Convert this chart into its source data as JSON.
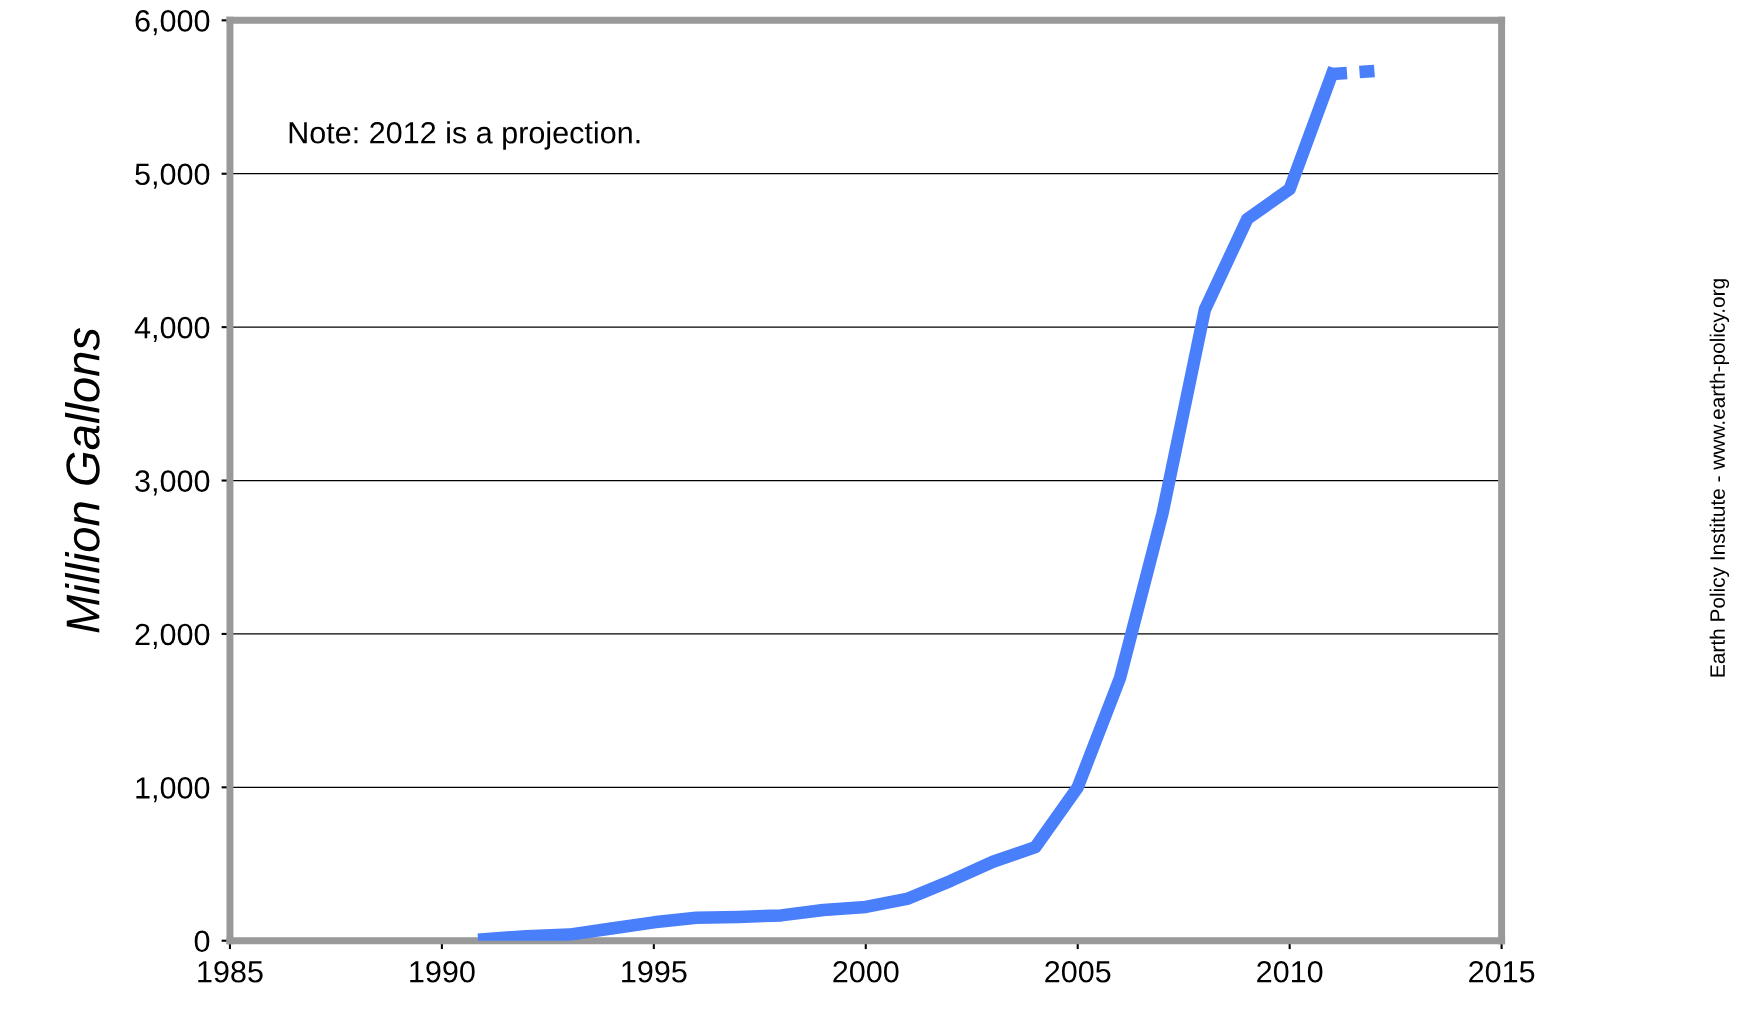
{
  "chart_data": {
    "type": "line",
    "ylabel": "Million Gallons",
    "annotations": [
      "Note: 2012 is a projection.",
      "Earth Policy Institute - www.earth-policy.org"
    ],
    "series": [
      {
        "color": "#4a7ffb",
        "x": [
          1991,
          1992,
          1993,
          1994,
          1995,
          1996,
          1997,
          1998,
          1999,
          2000,
          2001,
          2002,
          2003,
          2004,
          2005,
          2006,
          2007,
          2008,
          2009,
          2010,
          2011
        ],
        "values": [
          10,
          30,
          40,
          80,
          120,
          150,
          155,
          165,
          200,
          220,
          275,
          390,
          515,
          610,
          1000,
          1715,
          2785,
          4115,
          4705,
          4900,
          5650
        ]
      },
      {
        "color": "#4a7ffb",
        "line_style": "dashed",
        "x": [
          2011,
          2012
        ],
        "values": [
          5650,
          5670
        ]
      }
    ],
    "xlim": [
      1985,
      2015
    ],
    "xticks": [
      1985,
      1990,
      1995,
      2000,
      2005,
      2010,
      2015
    ],
    "ylim": [
      0,
      6000
    ],
    "yticks": [
      {
        "value": 0,
        "label": "0"
      },
      {
        "value": 1000,
        "label": "1,000"
      },
      {
        "value": 2000,
        "label": "2,000"
      },
      {
        "value": 3000,
        "label": "3,000"
      },
      {
        "value": 4000,
        "label": "4,000"
      },
      {
        "value": 5000,
        "label": "5,000"
      },
      {
        "value": 6000,
        "label": "6,000"
      }
    ],
    "grid": "y",
    "legend": false,
    "marker": "none",
    "line_style": "solid"
  }
}
